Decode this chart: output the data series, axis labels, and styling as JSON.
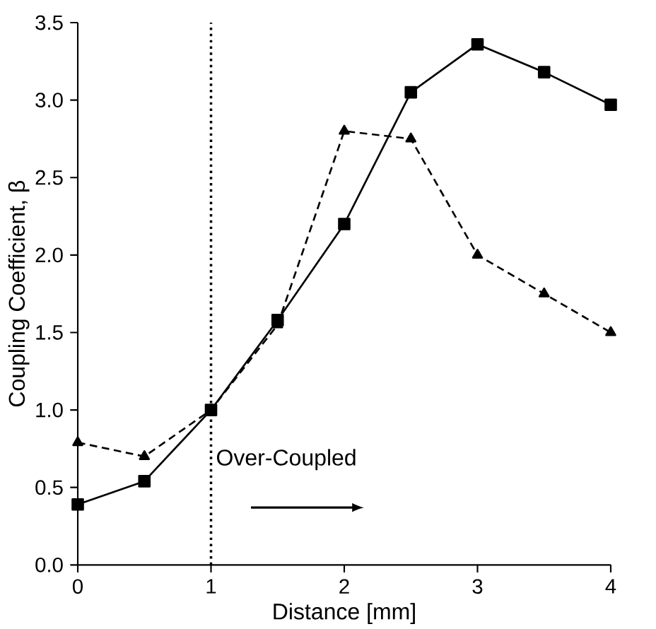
{
  "chart_data": {
    "type": "line",
    "xlabel": "Distance [mm]",
    "ylabel": "Coupling Coefficient, β",
    "xlim": [
      0,
      4
    ],
    "ylim": [
      0,
      3.5
    ],
    "xticks": [
      0,
      1,
      2,
      3,
      4
    ],
    "yticks": [
      {
        "value": 0,
        "label": "0.0"
      },
      {
        "value": 0.5,
        "label": "0.5"
      },
      {
        "value": 1,
        "label": "1.0"
      },
      {
        "value": 1.5,
        "label": "1.5"
      },
      {
        "value": 2,
        "label": "2.0"
      },
      {
        "value": 2.5,
        "label": "2.5"
      },
      {
        "value": 3,
        "label": "3.0"
      },
      {
        "value": 3.5,
        "label": "3.5"
      }
    ],
    "series": [
      {
        "color": "#000000",
        "marker": "square",
        "line_style": "solid",
        "x": [
          0,
          0.5,
          1,
          1.5,
          2,
          2.5,
          3,
          3.5,
          4
        ],
        "values": [
          0.39,
          0.54,
          1.0,
          1.58,
          2.2,
          3.05,
          3.36,
          3.18,
          2.97
        ]
      },
      {
        "color": "#000000",
        "marker": "triangle",
        "line_style": "dashed",
        "x": [
          0,
          0.5,
          1,
          1.5,
          2,
          2.5,
          3,
          3.5,
          4
        ],
        "values": [
          0.79,
          0.7,
          1.0,
          1.55,
          2.8,
          2.75,
          2.0,
          1.75,
          1.5
        ]
      }
    ],
    "ref_lines": [
      {
        "axis": "x",
        "value": 1,
        "line_style": "dotted",
        "color": "#000000"
      }
    ],
    "annotations": [
      "Over-Coupled"
    ]
  }
}
